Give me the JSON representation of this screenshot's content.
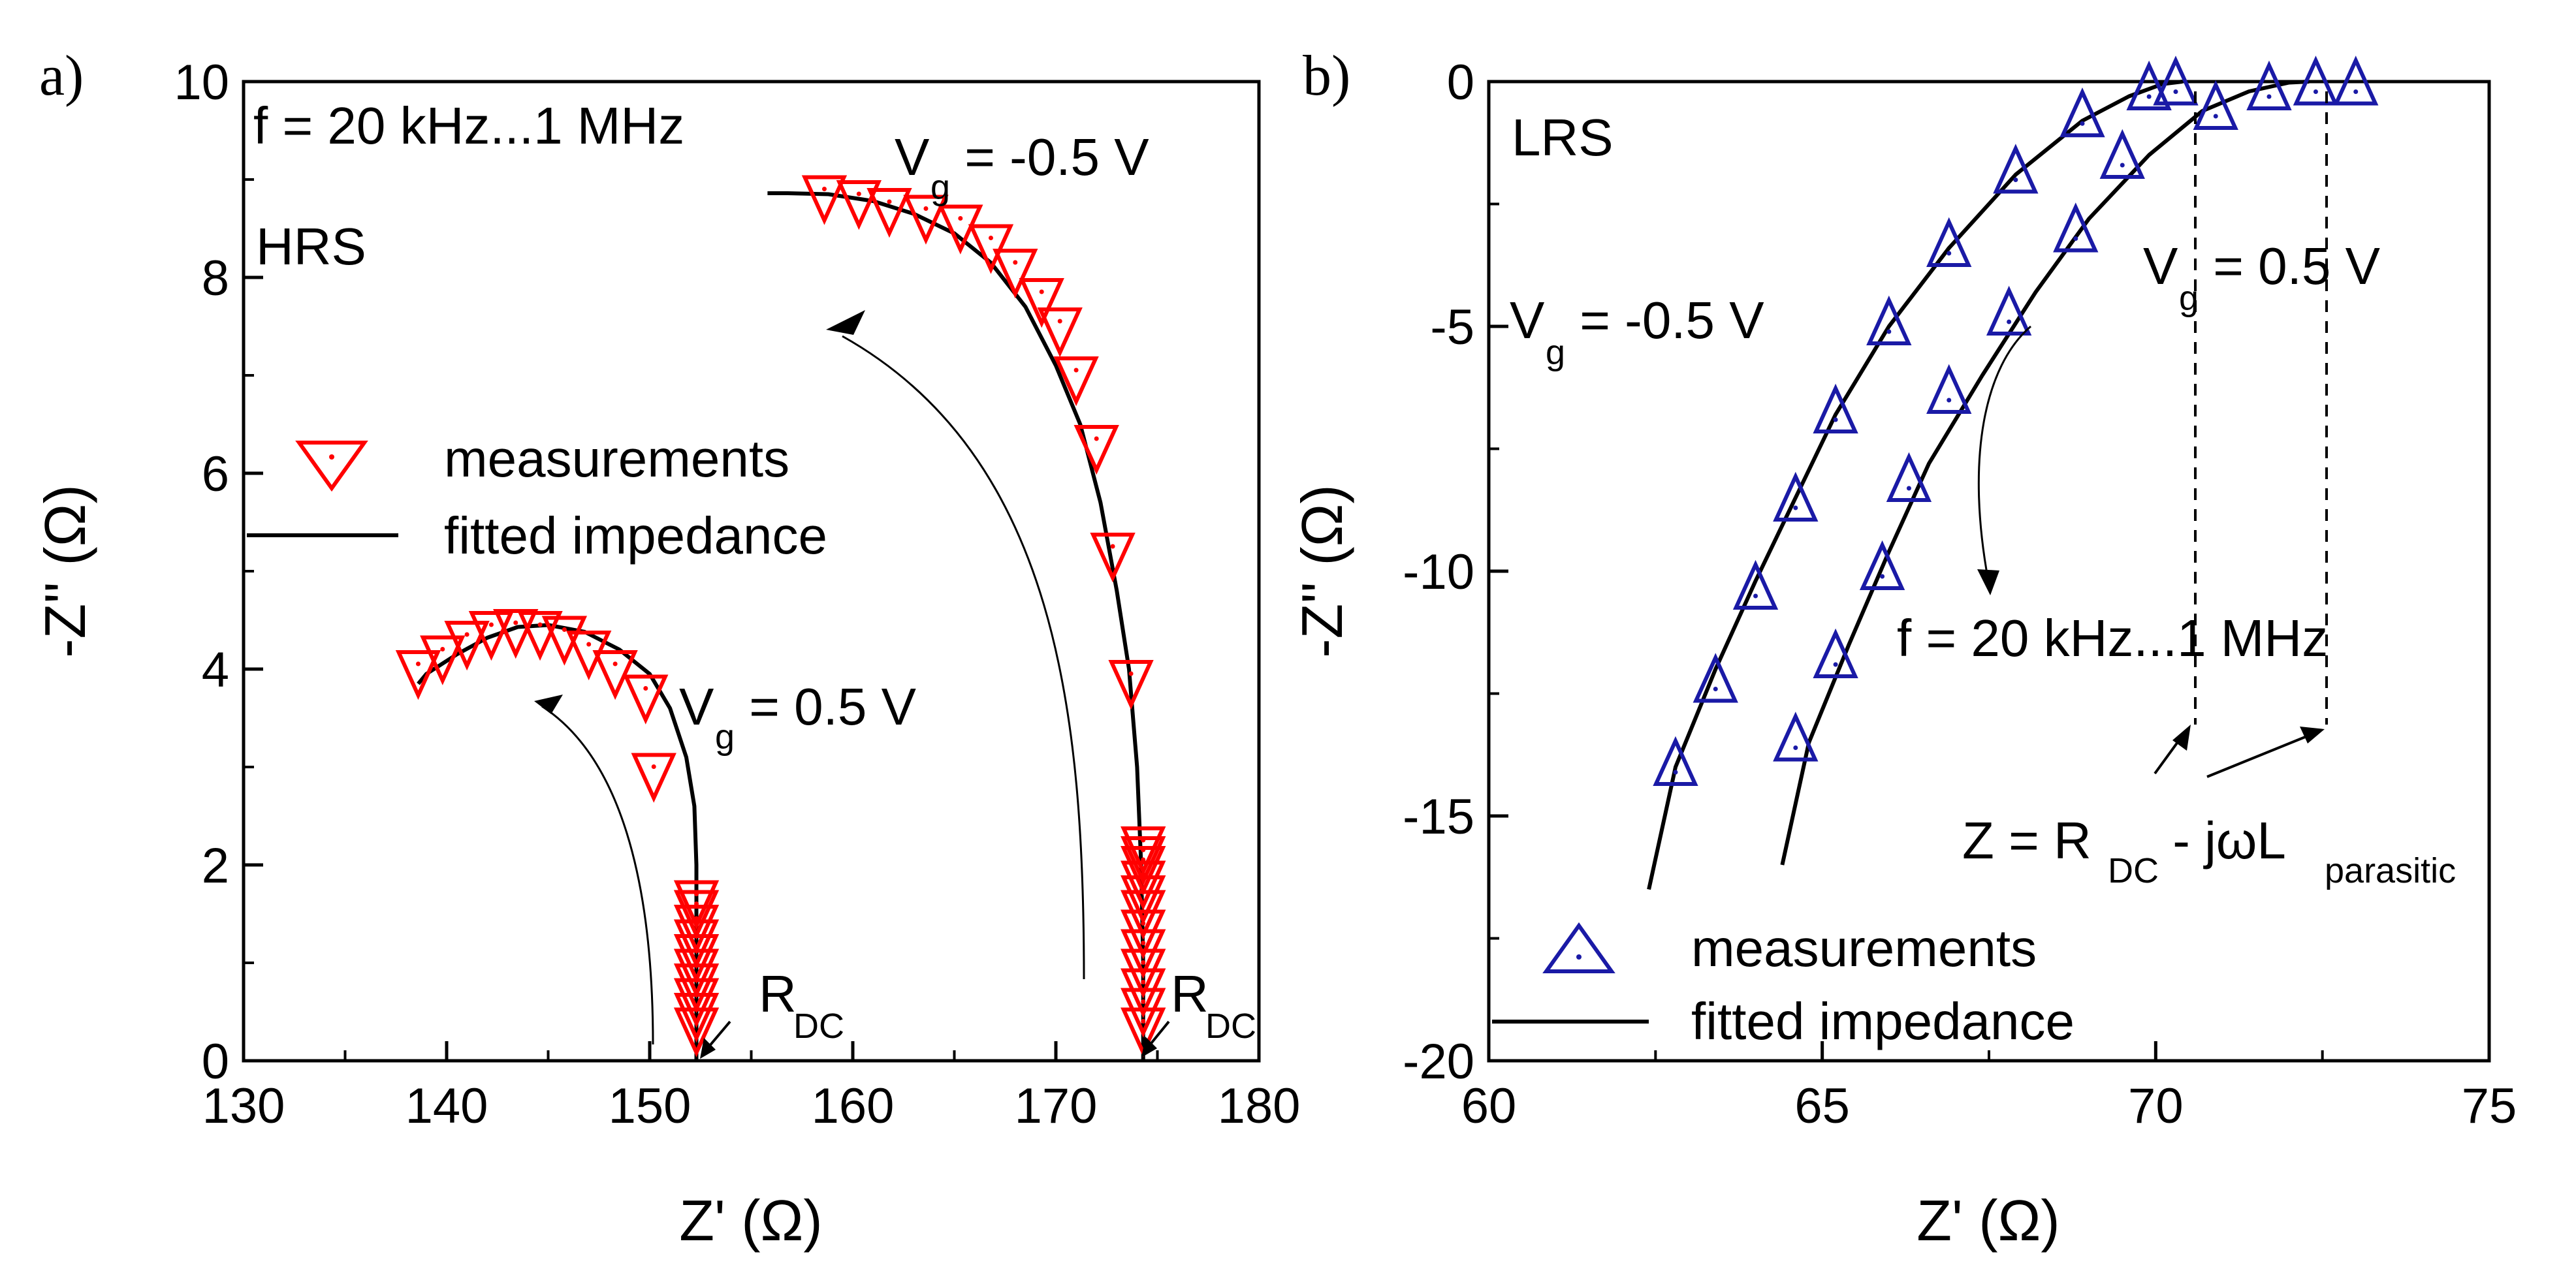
{
  "colors": {
    "marker_a": "#ff0000",
    "marker_b": "#1a1aa6",
    "line": "#000000"
  },
  "chart_data": [
    {
      "panel": "a)",
      "type": "scatter",
      "xlabel": "Z' (Ω)",
      "ylabel": "-Z'' (Ω)",
      "xlim": [
        130,
        180
      ],
      "ylim": [
        0,
        10
      ],
      "xticks": [
        130,
        140,
        150,
        160,
        170,
        180
      ],
      "yticks": [
        0,
        2,
        4,
        6,
        8,
        10
      ],
      "annotations": {
        "freq": "f = 20 kHz...1 MHz",
        "state": "HRS",
        "vg_neg_main": "V",
        "vg_neg_sub": "g",
        "vg_neg_rest": " = -0.5 V",
        "vg_pos_main": "V",
        "vg_pos_sub": "g",
        "vg_pos_rest": " = 0.5 V",
        "rdc_main": "R",
        "rdc_sub": "DC"
      },
      "legend": {
        "measurements": "measurements",
        "fit": "fitted impedance"
      },
      "series": [
        {
          "name": "Vg = -0.5 V measurements",
          "marker": "triangle-down",
          "x": [
            174.3,
            174.3,
            174.3,
            174.3,
            174.3,
            174.3,
            174.3,
            174.3,
            174.3,
            174.3,
            174.3,
            174.3,
            173.7,
            172.8,
            172.0,
            171.0,
            170.2,
            169.3,
            168.0,
            166.8,
            165.3,
            163.6,
            161.8,
            160.3,
            158.6
          ],
          "y": [
            0.35,
            0.55,
            0.75,
            0.95,
            1.15,
            1.35,
            1.55,
            1.7,
            1.85,
            2.0,
            2.1,
            2.2,
            3.9,
            5.2,
            6.3,
            7.0,
            7.5,
            7.8,
            8.1,
            8.35,
            8.55,
            8.65,
            8.72,
            8.8,
            8.85
          ]
        },
        {
          "name": "Vg = 0.5 V measurements",
          "marker": "triangle-down",
          "x": [
            152.3,
            152.3,
            152.3,
            152.3,
            152.3,
            152.3,
            152.3,
            152.3,
            152.3,
            152.3,
            150.2,
            149.8,
            148.3,
            147.0,
            145.8,
            144.6,
            143.4,
            142.2,
            141.0,
            139.8,
            138.6
          ],
          "y": [
            0.35,
            0.5,
            0.65,
            0.8,
            0.95,
            1.1,
            1.25,
            1.4,
            1.55,
            1.65,
            2.95,
            3.75,
            4.0,
            4.2,
            4.35,
            4.4,
            4.42,
            4.4,
            4.3,
            4.15,
            4.0
          ]
        },
        {
          "name": "Vg = -0.5 V fit",
          "marker": "line",
          "x": [
            174.3,
            174.3,
            174.2,
            174.0,
            173.6,
            173.0,
            172.2,
            171.2,
            170.0,
            168.5,
            166.8,
            165.0,
            163.0,
            161.0,
            158.8,
            156.8,
            155.8
          ],
          "y": [
            0.0,
            1.0,
            2.0,
            3.0,
            4.0,
            4.8,
            5.7,
            6.5,
            7.1,
            7.7,
            8.15,
            8.45,
            8.65,
            8.78,
            8.85,
            8.86,
            8.86
          ]
        },
        {
          "name": "Vg = 0.5 V fit",
          "marker": "line",
          "x": [
            152.3,
            152.3,
            152.3,
            152.2,
            151.8,
            151.0,
            150.0,
            148.5,
            146.8,
            145.0,
            143.5,
            142.0,
            140.5,
            139.0,
            138.6
          ],
          "y": [
            0.0,
            1.0,
            2.0,
            2.6,
            3.1,
            3.6,
            3.95,
            4.2,
            4.38,
            4.45,
            4.43,
            4.32,
            4.15,
            3.95,
            3.85
          ]
        }
      ]
    },
    {
      "panel": "b)",
      "type": "scatter",
      "xlabel": "Z' (Ω)",
      "ylabel": "-Z'' (Ω)",
      "xlim": [
        60,
        75
      ],
      "ylim": [
        -20,
        0
      ],
      "xticks": [
        60,
        65,
        70,
        75
      ],
      "yticks": [
        0,
        -5,
        -10,
        -15,
        -20
      ],
      "annotations": {
        "state": "LRS",
        "freq": "f = 20 kHz...1 MHz",
        "vg_neg_main": "V",
        "vg_neg_sub": "g",
        "vg_neg_rest": " = -0.5 V",
        "vg_pos_main": "V",
        "vg_pos_sub": "g",
        "vg_pos_rest": " = 0.5 V",
        "z_main": "Z = R",
        "z_sub1": "DC",
        "z_mid": " - jωL",
        "z_sub2": "parasitic"
      },
      "legend": {
        "measurements": "measurements",
        "fit": "fitted impedance"
      },
      "series": [
        {
          "name": "Vg = -0.5 V measurements",
          "marker": "triangle-up",
          "x": [
            62.8,
            63.4,
            64.0,
            64.6,
            65.2,
            66.0,
            66.9,
            67.9,
            68.9,
            69.9,
            70.3
          ],
          "y": [
            -14.0,
            -12.3,
            -10.4,
            -8.6,
            -6.8,
            -5.0,
            -3.4,
            -1.9,
            -0.75,
            -0.2,
            -0.1
          ]
        },
        {
          "name": "Vg = 0.5 V measurements",
          "marker": "triangle-up",
          "x": [
            64.6,
            65.2,
            65.9,
            66.3,
            66.9,
            67.8,
            68.8,
            69.5,
            70.9,
            71.7,
            72.4,
            73.0
          ],
          "y": [
            -13.5,
            -11.8,
            -10.0,
            -8.2,
            -6.4,
            -4.8,
            -3.1,
            -1.6,
            -0.6,
            -0.2,
            -0.1,
            -0.1
          ]
        },
        {
          "name": "Vg = -0.5 V fit",
          "marker": "line",
          "x": [
            62.4,
            62.8,
            63.4,
            64.0,
            64.6,
            65.2,
            66.0,
            66.9,
            67.9,
            68.9,
            69.6,
            70.1,
            70.4
          ],
          "y": [
            -16.5,
            -14.0,
            -12.0,
            -10.2,
            -8.5,
            -6.8,
            -5.0,
            -3.4,
            -1.9,
            -0.8,
            -0.3,
            -0.05,
            0.0
          ]
        },
        {
          "name": "Vg = 0.5 V fit",
          "marker": "line",
          "x": [
            64.4,
            64.8,
            65.4,
            66.0,
            66.6,
            67.4,
            68.2,
            69.0,
            69.9,
            70.7,
            71.4,
            72.0,
            72.3
          ],
          "y": [
            -16.0,
            -13.5,
            -11.5,
            -9.6,
            -7.8,
            -6.0,
            -4.3,
            -2.8,
            -1.5,
            -0.6,
            -0.2,
            -0.02,
            0.0
          ]
        }
      ]
    }
  ]
}
